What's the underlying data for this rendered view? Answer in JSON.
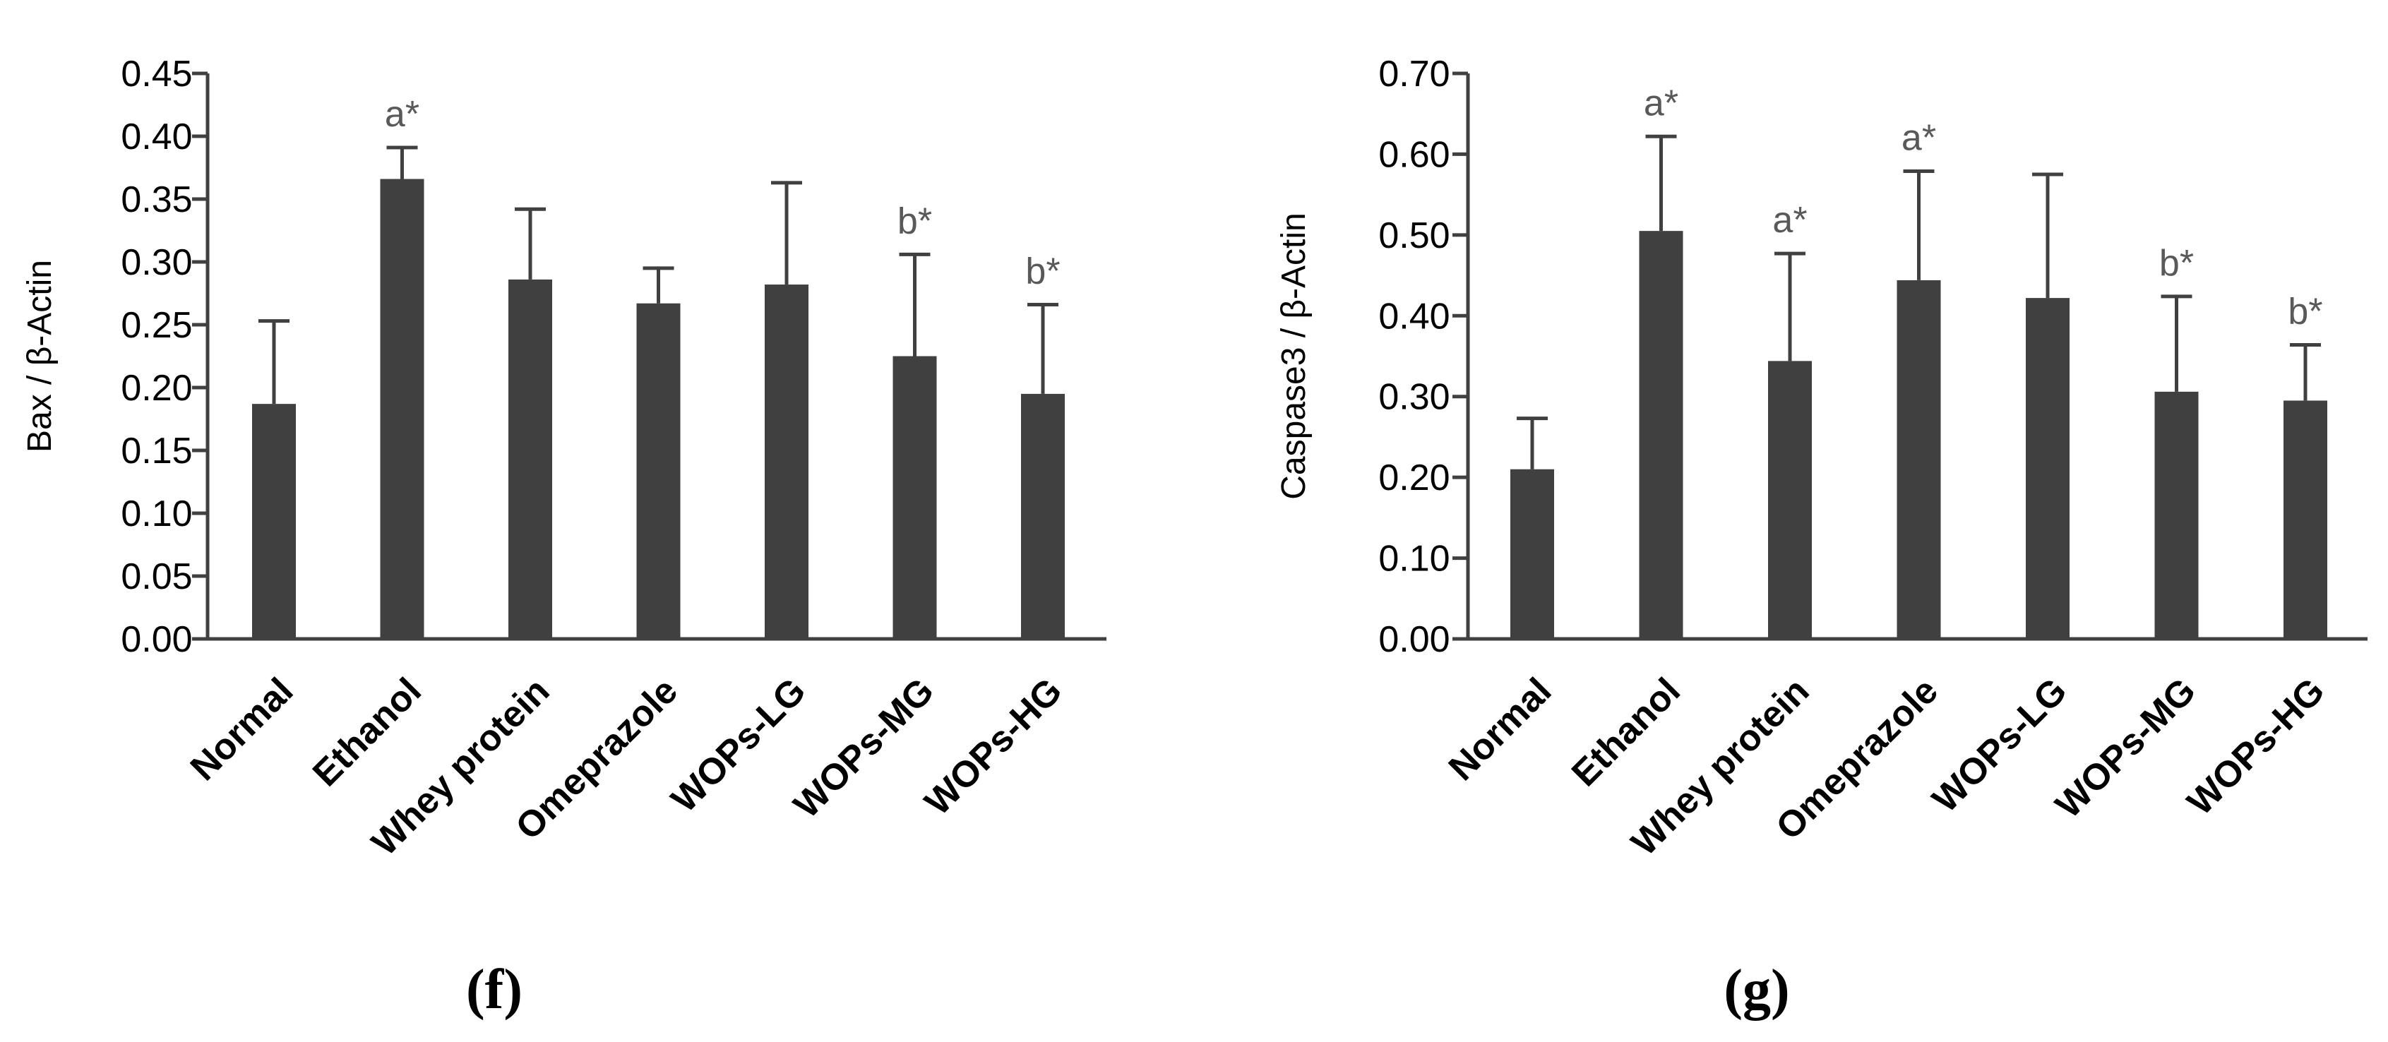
{
  "colors": {
    "bar": "#404040",
    "axis": "#404040",
    "significance": "#595959"
  },
  "chart_data": [
    {
      "type": "bar",
      "panel": "f",
      "panel_label": "(f)",
      "ylabel": "Bax  / β-Actin",
      "ylim": [
        0,
        0.45
      ],
      "ytick_step": 0.05,
      "ytick_labels": [
        "0.00",
        "0.05",
        "0.10",
        "0.15",
        "0.20",
        "0.25",
        "0.30",
        "0.35",
        "0.40",
        "0.45"
      ],
      "categories": [
        "Normal",
        "Ethanol",
        "Whey protein",
        "Omeprazole",
        "WOPs-LG",
        "WOPs-MG",
        "WOPs-HG"
      ],
      "values": [
        0.187,
        0.366,
        0.286,
        0.267,
        0.282,
        0.225,
        0.195
      ],
      "errors": [
        0.066,
        0.025,
        0.056,
        0.028,
        0.081,
        0.081,
        0.071
      ],
      "annotations": [
        "",
        "a*",
        "",
        "",
        "",
        "b*",
        "b*"
      ]
    },
    {
      "type": "bar",
      "panel": "g",
      "panel_label": "(g)",
      "ylabel": "Caspase3  / β-Actin",
      "ylim": [
        0,
        0.7
      ],
      "ytick_step": 0.1,
      "ytick_labels": [
        "0.00",
        "0.10",
        "0.20",
        "0.30",
        "0.40",
        "0.50",
        "0.60",
        "0.70"
      ],
      "categories": [
        "Normal",
        "Ethanol",
        "Whey protein",
        "Omeprazole",
        "WOPs-LG",
        "WOPs-MG",
        "WOPs-HG"
      ],
      "values": [
        0.21,
        0.505,
        0.344,
        0.444,
        0.422,
        0.306,
        0.295
      ],
      "errors": [
        0.063,
        0.117,
        0.133,
        0.135,
        0.153,
        0.118,
        0.069
      ],
      "annotations": [
        "",
        "a*",
        "a*",
        "a*",
        "",
        "b*",
        "b*"
      ]
    }
  ]
}
